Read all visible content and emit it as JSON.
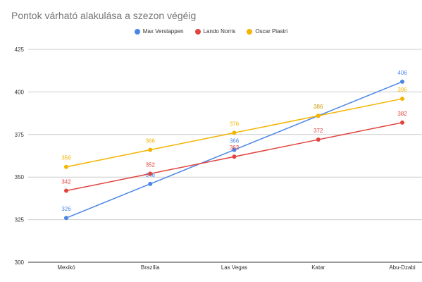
{
  "chart_data": {
    "type": "line",
    "title": "Pontok várható alakulása a szezon végéig",
    "xlabel": "",
    "ylabel": "",
    "categories": [
      "Mexikó",
      "Brazília",
      "Las Vegas",
      "Katar",
      "Abu-Dzabi"
    ],
    "ylim": [
      300,
      425
    ],
    "yticks": [
      300,
      325,
      350,
      375,
      400,
      425
    ],
    "grid": true,
    "legend_position": "top",
    "series": [
      {
        "name": "Max Verstappen",
        "color": "#4a86e8",
        "values": [
          326,
          346,
          366,
          386,
          406
        ]
      },
      {
        "name": "Lando Norris",
        "color": "#e0443e",
        "values": [
          342,
          352,
          362,
          372,
          382
        ]
      },
      {
        "name": "Oscar Piastri",
        "color": "#f4b400",
        "values": [
          356,
          366,
          376,
          386,
          396
        ]
      }
    ]
  }
}
